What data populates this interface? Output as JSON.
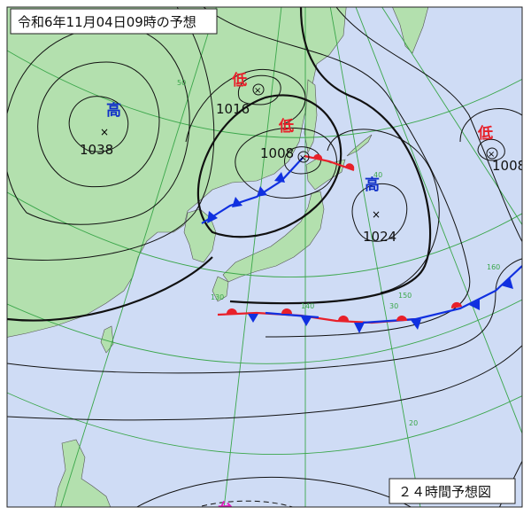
{
  "header": {
    "title": "令和6年11月04日09時の予想"
  },
  "footer": {
    "label": "２４時間予想図"
  },
  "systems": [
    {
      "kind": "低",
      "pressure": 1016
    },
    {
      "kind": "低",
      "pressure": 1008
    },
    {
      "kind": "高",
      "pressure": 1038
    },
    {
      "kind": "高",
      "pressure": 1024
    },
    {
      "kind": "低",
      "pressure": 1008
    }
  ],
  "typhoon": {
    "kind": "台"
  },
  "grid_labels": {
    "latitudes": [
      50,
      40,
      30,
      20
    ],
    "longitudes": [
      130,
      140,
      150,
      160
    ]
  }
}
